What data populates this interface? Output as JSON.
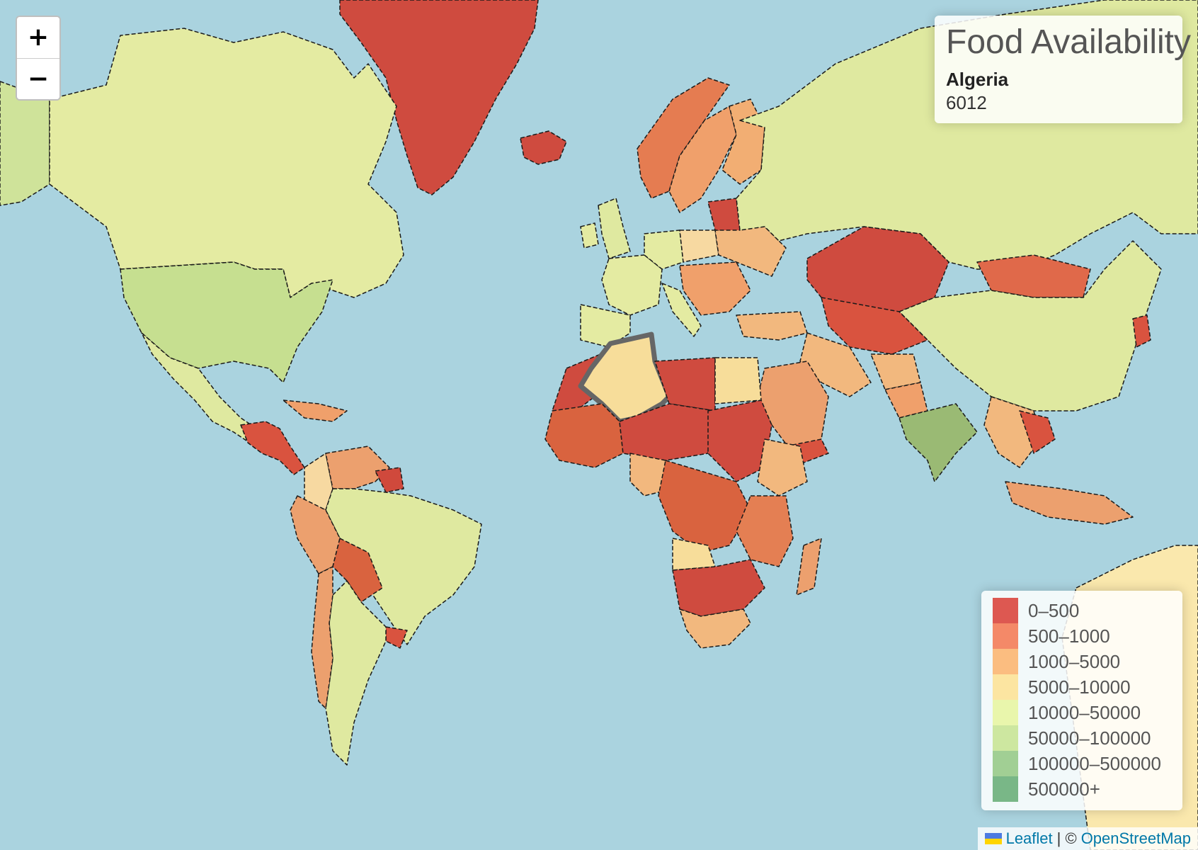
{
  "info": {
    "title": "Food Availability",
    "country": "Algeria",
    "value": "6012"
  },
  "zoom": {
    "in_label": "+",
    "out_label": "−"
  },
  "legend": {
    "items": [
      {
        "label": "0–500",
        "color": "#d73027"
      },
      {
        "label": "500–1000",
        "color": "#f46d43"
      },
      {
        "label": "1000–5000",
        "color": "#fdae61"
      },
      {
        "label": "5000–10000",
        "color": "#fee08b"
      },
      {
        "label": "10000–50000",
        "color": "#e6f598"
      },
      {
        "label": "50000–100000",
        "color": "#c3e28a"
      },
      {
        "label": "100000–500000",
        "color": "#8cc47a"
      },
      {
        "label": "500000+",
        "color": "#5aa66a"
      }
    ]
  },
  "attribution": {
    "leaflet": "Leaflet",
    "separator": "| ©",
    "osm": "OpenStreetMap"
  },
  "colors": {
    "ocean": "#aad3df",
    "coast": "#3b7dff",
    "highlight_border": "#666666"
  },
  "icons": {
    "flag": "ukraine-flag-icon"
  }
}
